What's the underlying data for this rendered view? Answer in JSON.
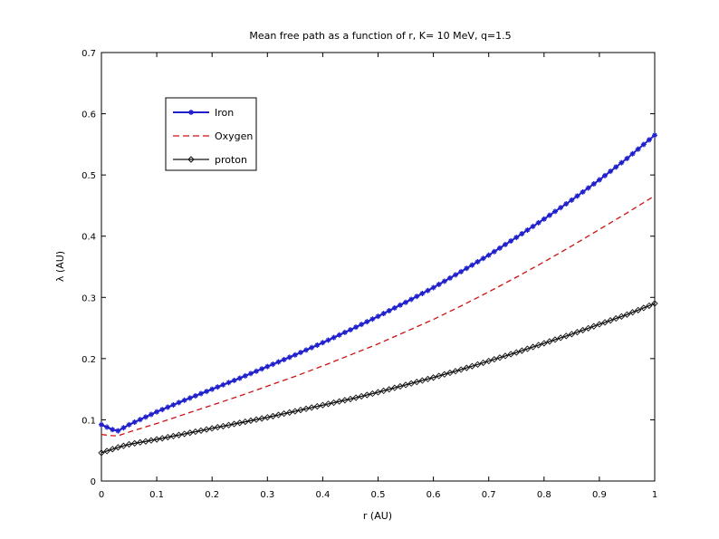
{
  "chart_data": {
    "type": "line",
    "title": "Mean free path as a function of r, K= 10 MeV, q=1.5",
    "xlabel": "r (AU)",
    "ylabel": "λ (AU)",
    "xlim": [
      0,
      1
    ],
    "ylim": [
      0,
      0.7
    ],
    "xticks": [
      "0",
      "0.1",
      "0.2",
      "0.3",
      "0.4",
      "0.5",
      "0.6",
      "0.7",
      "0.8",
      "0.9",
      "1"
    ],
    "yticks": [
      "0",
      "0.1",
      "0.2",
      "0.3",
      "0.4",
      "0.5",
      "0.6",
      "0.7"
    ],
    "grid": false,
    "legend_position": "top-left",
    "series": [
      {
        "name": "Iron",
        "color": "#1f1fcc",
        "style": "solid-with-star-markers",
        "x": [
          0.0,
          0.01,
          0.02,
          0.03,
          0.05,
          0.1,
          0.15,
          0.2,
          0.25,
          0.3,
          0.35,
          0.4,
          0.45,
          0.5,
          0.55,
          0.6,
          0.65,
          0.7,
          0.75,
          0.8,
          0.85,
          0.9,
          0.95,
          1.0
        ],
        "y": [
          0.092,
          0.088,
          0.084,
          0.082,
          0.092,
          0.113,
          0.132,
          0.15,
          0.168,
          0.187,
          0.206,
          0.226,
          0.247,
          0.269,
          0.292,
          0.316,
          0.342,
          0.369,
          0.398,
          0.428,
          0.459,
          0.492,
          0.527,
          0.565
        ]
      },
      {
        "name": "Oxygen",
        "color": "#cc1111",
        "style": "dashed",
        "x": [
          0.0,
          0.01,
          0.02,
          0.03,
          0.05,
          0.1,
          0.15,
          0.2,
          0.25,
          0.3,
          0.35,
          0.4,
          0.45,
          0.5,
          0.55,
          0.6,
          0.65,
          0.7,
          0.75,
          0.8,
          0.85,
          0.9,
          0.95,
          1.0
        ],
        "y": [
          0.076,
          0.075,
          0.074,
          0.074,
          0.08,
          0.094,
          0.109,
          0.124,
          0.139,
          0.155,
          0.171,
          0.188,
          0.206,
          0.224,
          0.244,
          0.264,
          0.286,
          0.309,
          0.333,
          0.358,
          0.384,
          0.411,
          0.438,
          0.466
        ]
      },
      {
        "name": "proton",
        "color": "#111111",
        "style": "solid-with-diamond-markers",
        "x": [
          0.0,
          0.01,
          0.02,
          0.03,
          0.05,
          0.1,
          0.15,
          0.2,
          0.25,
          0.3,
          0.35,
          0.4,
          0.45,
          0.5,
          0.55,
          0.6,
          0.65,
          0.7,
          0.75,
          0.8,
          0.85,
          0.9,
          0.95,
          1.0
        ],
        "y": [
          0.046,
          0.049,
          0.052,
          0.055,
          0.06,
          0.068,
          0.077,
          0.086,
          0.095,
          0.104,
          0.114,
          0.124,
          0.134,
          0.145,
          0.157,
          0.169,
          0.182,
          0.196,
          0.21,
          0.225,
          0.24,
          0.256,
          0.272,
          0.29
        ]
      }
    ]
  }
}
